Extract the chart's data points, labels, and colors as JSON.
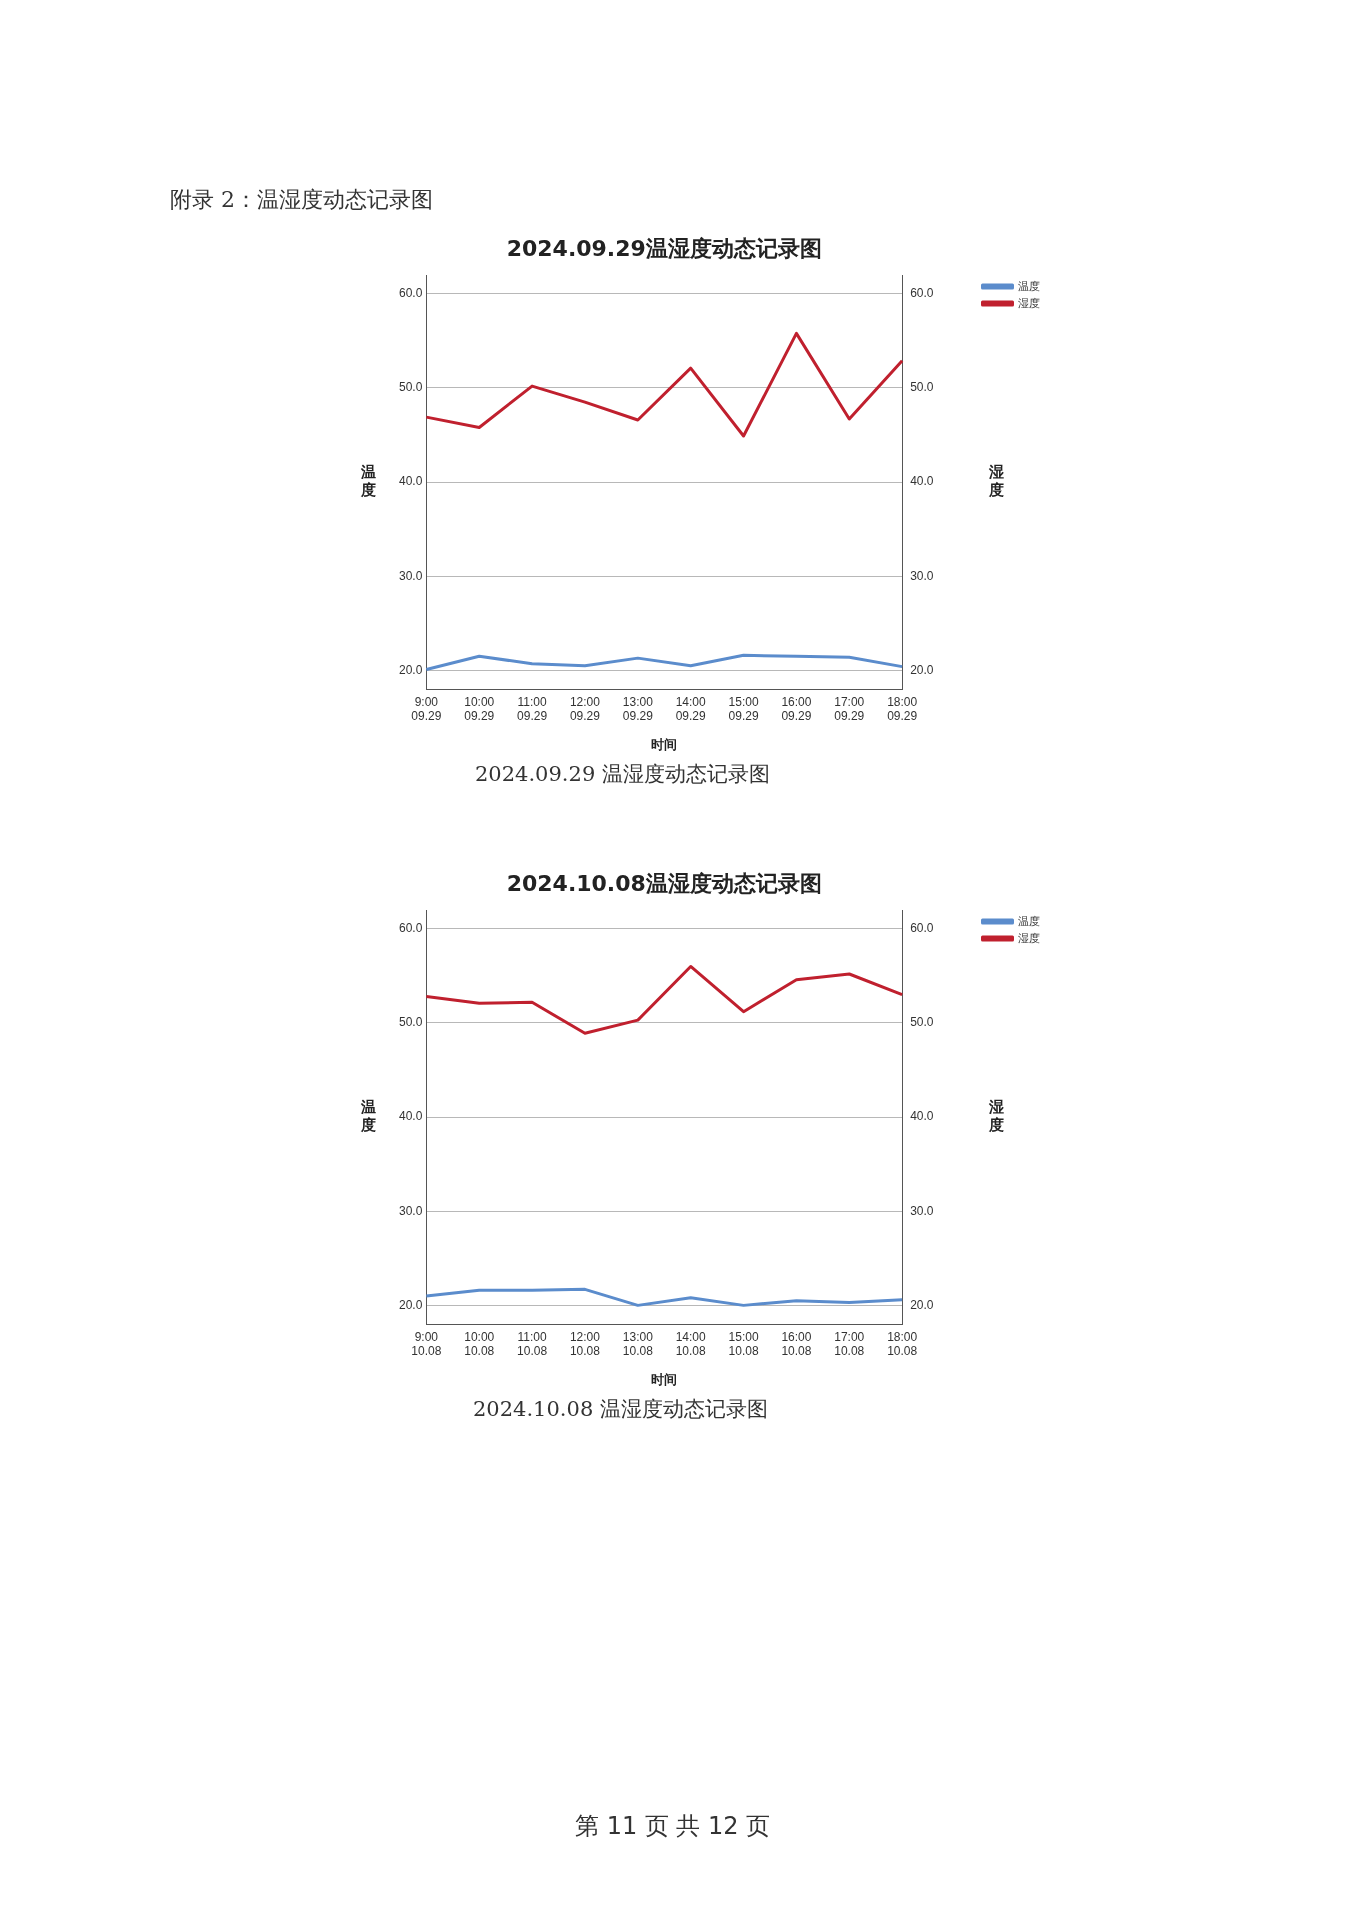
{
  "chart_data": [
    {
      "type": "line",
      "title": "2024.09.29温湿度动态记录图",
      "xlabel": "时间",
      "ylabel": "温度",
      "y2label": "湿度",
      "categories": [
        "9:00\n09.29",
        "10:00\n09.29",
        "11:00\n09.29",
        "12:00\n09.29",
        "13:00\n09.29",
        "14:00\n09.29",
        "15:00\n09.29",
        "16:00\n09.29",
        "17:00\n09.29",
        "18:00\n09.29"
      ],
      "series": [
        {
          "name": "温度",
          "color": "#5b8ccc",
          "values": [
            20.1,
            21.5,
            20.7,
            20.5,
            21.3,
            20.5,
            21.6,
            21.5,
            21.4,
            20.4
          ]
        },
        {
          "name": "湿度",
          "color": "#c0202e",
          "values": [
            46.9,
            45.8,
            50.2,
            48.5,
            46.6,
            52.1,
            44.9,
            55.8,
            46.7,
            52.9
          ]
        }
      ],
      "ylim": [
        18,
        62
      ],
      "yticks": [
        {
          "value": 20,
          "label": "20.0"
        },
        {
          "value": 30,
          "label": "30.0"
        },
        {
          "value": 40,
          "label": "40.0"
        },
        {
          "value": 50,
          "label": "50.0"
        },
        {
          "value": 60,
          "label": "60.0"
        }
      ],
      "y2lim": [
        18,
        62
      ],
      "y2ticks": [
        {
          "value": 20,
          "label": "20.0"
        },
        {
          "value": 30,
          "label": "30.0"
        },
        {
          "value": 40,
          "label": "40.0"
        },
        {
          "value": 50,
          "label": "50.0"
        },
        {
          "value": 60,
          "label": "60.0"
        }
      ],
      "grid": "y",
      "legend": "top right",
      "marker": "none",
      "line_style": "solid",
      "annotations": [
        "附录 2：温湿度动态记录图",
        "2024.09.29 温湿度动态记录图"
      ]
    },
    {
      "type": "line",
      "title": "2024.10.08温湿度动态记录图",
      "xlabel": "时间",
      "ylabel": "温度",
      "y2label": "湿度",
      "categories": [
        "9:00\n10.08",
        "10:00\n10.08",
        "11:00\n10.08",
        "12:00\n10.08",
        "13:00\n10.08",
        "14:00\n10.08",
        "15:00\n10.08",
        "16:00\n10.08",
        "17:00\n10.08",
        "18:00\n10.08"
      ],
      "series": [
        {
          "name": "温度",
          "color": "#5b8ccc",
          "values": [
            21.0,
            21.6,
            21.6,
            21.7,
            20.0,
            20.8,
            20.0,
            20.5,
            20.3,
            20.6
          ]
        },
        {
          "name": "湿度",
          "color": "#c0202e",
          "values": [
            52.8,
            52.1,
            52.2,
            48.9,
            50.3,
            56.0,
            51.2,
            54.6,
            55.2,
            53.0
          ]
        }
      ],
      "ylim": [
        18,
        62
      ],
      "yticks": [
        {
          "value": 20,
          "label": "20.0"
        },
        {
          "value": 30,
          "label": "30.0"
        },
        {
          "value": 40,
          "label": "40.0"
        },
        {
          "value": 50,
          "label": "50.0"
        },
        {
          "value": 60,
          "label": "60.0"
        }
      ],
      "y2lim": [
        18,
        62
      ],
      "y2ticks": [
        {
          "value": 20,
          "label": "20.0"
        },
        {
          "value": 30,
          "label": "30.0"
        },
        {
          "value": 40,
          "label": "40.0"
        },
        {
          "value": 50,
          "label": "50.0"
        },
        {
          "value": 60,
          "label": "60.0"
        }
      ],
      "grid": "y",
      "legend": "top right",
      "marker": "none",
      "line_style": "solid",
      "annotations": [
        "2024.10.08 温湿度动态记录图",
        "第 11 页 共 12 页"
      ]
    }
  ]
}
